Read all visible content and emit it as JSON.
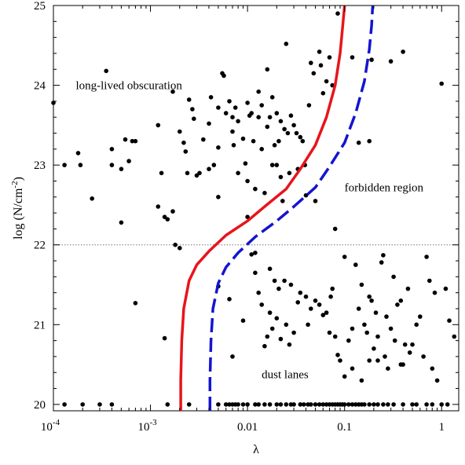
{
  "chart_data": {
    "type": "scatter",
    "title": "",
    "xlabel": "λ",
    "ylabel_base": "log (N/cm",
    "ylabel_exp": "-2",
    "ylabel_close": ")",
    "x_scale": "log",
    "xlim": [
      0.0001,
      1.5
    ],
    "ylim": [
      19.92,
      25.0
    ],
    "x_ticks": [
      {
        "value": 0.0001,
        "base": "10",
        "exp": "-4"
      },
      {
        "value": 0.001,
        "base": "10",
        "exp": "-3"
      },
      {
        "value": 0.01,
        "base": "0.01",
        "exp": ""
      },
      {
        "value": 0.1,
        "base": "0.1",
        "exp": ""
      },
      {
        "value": 1,
        "base": "1",
        "exp": ""
      }
    ],
    "y_ticks": [
      20,
      21,
      22,
      23,
      24,
      25
    ],
    "reference_line": {
      "y": 22,
      "style": "dotted",
      "color": "#777777"
    },
    "annotations": [
      {
        "text": "long-lived obscuration",
        "x": 0.00017,
        "y": 24.0
      },
      {
        "text": "forbidden region",
        "x": 0.1,
        "y": 22.72
      },
      {
        "text": "dust lanes",
        "x": 0.014,
        "y": 20.38
      }
    ],
    "series": [
      {
        "style": "points",
        "color": "#000000",
        "points": [
          [
            0.0001,
            23.78
          ],
          [
            0.00013,
            23.0
          ],
          [
            0.00018,
            23.15
          ],
          [
            0.00019,
            23.0
          ],
          [
            0.00025,
            22.58
          ],
          [
            0.00035,
            24.18
          ],
          [
            0.0004,
            23.2
          ],
          [
            0.0004,
            23.0
          ],
          [
            0.0005,
            22.95
          ],
          [
            0.0005,
            22.28
          ],
          [
            0.00055,
            23.32
          ],
          [
            0.0006,
            23.05
          ],
          [
            0.00065,
            23.3
          ],
          [
            0.0007,
            23.3
          ],
          [
            0.0007,
            21.27
          ],
          [
            0.0012,
            23.5
          ],
          [
            0.0012,
            22.48
          ],
          [
            0.0013,
            22.9
          ],
          [
            0.0014,
            22.35
          ],
          [
            0.0014,
            20.83
          ],
          [
            0.0015,
            22.32
          ],
          [
            0.0017,
            23.92
          ],
          [
            0.0017,
            22.42
          ],
          [
            0.0018,
            22.0
          ],
          [
            0.002,
            21.96
          ],
          [
            0.002,
            23.42
          ],
          [
            0.0022,
            23.28
          ],
          [
            0.0023,
            23.17
          ],
          [
            0.0024,
            22.9
          ],
          [
            0.0025,
            23.82
          ],
          [
            0.0027,
            23.7
          ],
          [
            0.0028,
            23.58
          ],
          [
            0.003,
            22.87
          ],
          [
            0.0032,
            22.9
          ],
          [
            0.0035,
            23.32
          ],
          [
            0.004,
            22.95
          ],
          [
            0.004,
            23.52
          ],
          [
            0.0042,
            23.85
          ],
          [
            0.0045,
            23.0
          ],
          [
            0.005,
            23.72
          ],
          [
            0.005,
            22.6
          ],
          [
            0.005,
            23.22
          ],
          [
            0.0055,
            24.15
          ],
          [
            0.0057,
            24.12
          ],
          [
            0.006,
            23.65
          ],
          [
            0.0065,
            23.8
          ],
          [
            0.007,
            23.6
          ],
          [
            0.007,
            23.42
          ],
          [
            0.0072,
            23.25
          ],
          [
            0.0075,
            23.72
          ],
          [
            0.008,
            23.55
          ],
          [
            0.008,
            22.9
          ],
          [
            0.009,
            23.33
          ],
          [
            0.0095,
            23.02
          ],
          [
            0.01,
            23.78
          ],
          [
            0.01,
            22.8
          ],
          [
            0.01,
            22.35
          ],
          [
            0.0105,
            23.62
          ],
          [
            0.011,
            23.65
          ],
          [
            0.011,
            21.88
          ],
          [
            0.0115,
            23.3
          ],
          [
            0.012,
            22.7
          ],
          [
            0.012,
            21.9
          ],
          [
            0.013,
            23.92
          ],
          [
            0.013,
            23.6
          ],
          [
            0.014,
            23.75
          ],
          [
            0.014,
            23.2
          ],
          [
            0.015,
            22.65
          ],
          [
            0.016,
            24.2
          ],
          [
            0.016,
            23.48
          ],
          [
            0.017,
            23.6
          ],
          [
            0.017,
            21.7
          ],
          [
            0.018,
            23.85
          ],
          [
            0.018,
            23.0
          ],
          [
            0.019,
            23.25
          ],
          [
            0.02,
            23.65
          ],
          [
            0.02,
            23.0
          ],
          [
            0.021,
            23.3
          ],
          [
            0.022,
            22.85
          ],
          [
            0.022,
            23.55
          ],
          [
            0.023,
            22.55
          ],
          [
            0.024,
            23.45
          ],
          [
            0.025,
            24.52
          ],
          [
            0.026,
            23.4
          ],
          [
            0.027,
            22.9
          ],
          [
            0.028,
            23.62
          ],
          [
            0.03,
            23.5
          ],
          [
            0.032,
            23.4
          ],
          [
            0.033,
            22.95
          ],
          [
            0.035,
            23.35
          ],
          [
            0.037,
            23.3
          ],
          [
            0.039,
            23.0
          ],
          [
            0.04,
            22.62
          ],
          [
            0.043,
            23.75
          ],
          [
            0.045,
            24.28
          ],
          [
            0.048,
            24.15
          ],
          [
            0.05,
            22.55
          ],
          [
            0.055,
            24.42
          ],
          [
            0.057,
            24.25
          ],
          [
            0.06,
            23.9
          ],
          [
            0.065,
            24.05
          ],
          [
            0.07,
            24.35
          ],
          [
            0.075,
            24.0
          ],
          [
            0.08,
            22.2
          ],
          [
            0.085,
            24.9
          ],
          [
            0.12,
            24.35
          ],
          [
            0.14,
            23.28
          ],
          [
            0.18,
            23.3
          ],
          [
            0.19,
            24.32
          ],
          [
            0.3,
            24.3
          ],
          [
            0.4,
            24.42
          ],
          [
            1.0,
            24.02
          ],
          [
            0.005,
            21.48
          ],
          [
            0.0065,
            21.32
          ],
          [
            0.007,
            20.6
          ],
          [
            0.009,
            21.05
          ],
          [
            0.012,
            21.65
          ],
          [
            0.013,
            21.4
          ],
          [
            0.014,
            21.25
          ],
          [
            0.015,
            20.73
          ],
          [
            0.016,
            20.85
          ],
          [
            0.017,
            21.15
          ],
          [
            0.018,
            20.95
          ],
          [
            0.019,
            21.55
          ],
          [
            0.02,
            21.08
          ],
          [
            0.021,
            21.45
          ],
          [
            0.022,
            20.82
          ],
          [
            0.024,
            21.55
          ],
          [
            0.025,
            21.0
          ],
          [
            0.027,
            20.75
          ],
          [
            0.028,
            21.5
          ],
          [
            0.03,
            20.9
          ],
          [
            0.033,
            21.28
          ],
          [
            0.035,
            21.4
          ],
          [
            0.04,
            21.35
          ],
          [
            0.042,
            21.0
          ],
          [
            0.045,
            21.2
          ],
          [
            0.05,
            21.3
          ],
          [
            0.055,
            21.25
          ],
          [
            0.06,
            21.12
          ],
          [
            0.065,
            21.15
          ],
          [
            0.07,
            20.9
          ],
          [
            0.072,
            21.35
          ],
          [
            0.075,
            21.45
          ],
          [
            0.08,
            20.85
          ],
          [
            0.085,
            20.62
          ],
          [
            0.09,
            20.55
          ],
          [
            0.1,
            21.85
          ],
          [
            0.1,
            20.35
          ],
          [
            0.11,
            20.8
          ],
          [
            0.12,
            20.95
          ],
          [
            0.13,
            21.75
          ],
          [
            0.14,
            21.2
          ],
          [
            0.15,
            21.5
          ],
          [
            0.16,
            21.0
          ],
          [
            0.17,
            20.9
          ],
          [
            0.18,
            21.35
          ],
          [
            0.19,
            21.3
          ],
          [
            0.2,
            20.7
          ],
          [
            0.21,
            21.15
          ],
          [
            0.22,
            20.55
          ],
          [
            0.24,
            21.78
          ],
          [
            0.25,
            21.87
          ],
          [
            0.27,
            21.1
          ],
          [
            0.3,
            20.95
          ],
          [
            0.32,
            21.6
          ],
          [
            0.35,
            21.25
          ],
          [
            0.38,
            21.3
          ],
          [
            0.4,
            20.5
          ],
          [
            0.45,
            21.45
          ],
          [
            0.5,
            20.75
          ],
          [
            0.55,
            21.0
          ],
          [
            0.6,
            21.1
          ],
          [
            0.65,
            20.6
          ],
          [
            0.7,
            21.85
          ],
          [
            0.75,
            21.55
          ],
          [
            0.8,
            20.45
          ],
          [
            0.85,
            21.4
          ],
          [
            0.9,
            20.3
          ],
          [
            1.1,
            21.45
          ],
          [
            1.2,
            21.05
          ],
          [
            1.35,
            20.85
          ],
          [
            0.12,
            20.45
          ],
          [
            0.15,
            20.3
          ],
          [
            0.18,
            20.55
          ],
          [
            0.22,
            20.85
          ],
          [
            0.26,
            20.6
          ],
          [
            0.28,
            20.45
          ],
          [
            0.33,
            20.8
          ],
          [
            0.38,
            20.5
          ],
          [
            0.42,
            20.75
          ],
          [
            0.47,
            20.65
          ],
          [
            0.00013,
            20.0
          ],
          [
            0.0002,
            20.0
          ],
          [
            0.0003,
            20.0
          ],
          [
            0.0004,
            20.0
          ],
          [
            0.0015,
            20.0
          ],
          [
            0.0025,
            20.0
          ],
          [
            0.005,
            20.0
          ],
          [
            0.006,
            20.0
          ],
          [
            0.0065,
            20.0
          ],
          [
            0.007,
            20.0
          ],
          [
            0.0075,
            20.0
          ],
          [
            0.008,
            20.0
          ],
          [
            0.009,
            20.0
          ],
          [
            0.01,
            20.0
          ],
          [
            0.012,
            20.0
          ],
          [
            0.013,
            20.0
          ],
          [
            0.015,
            20.0
          ],
          [
            0.017,
            20.0
          ],
          [
            0.02,
            20.0
          ],
          [
            0.022,
            20.0
          ],
          [
            0.025,
            20.0
          ],
          [
            0.028,
            20.0
          ],
          [
            0.03,
            20.0
          ],
          [
            0.035,
            20.0
          ],
          [
            0.038,
            20.0
          ],
          [
            0.042,
            20.0
          ],
          [
            0.045,
            20.0
          ],
          [
            0.05,
            20.0
          ],
          [
            0.055,
            20.0
          ],
          [
            0.06,
            20.0
          ],
          [
            0.065,
            20.0
          ],
          [
            0.07,
            20.0
          ],
          [
            0.075,
            20.0
          ],
          [
            0.08,
            20.0
          ],
          [
            0.085,
            20.0
          ],
          [
            0.09,
            20.0
          ],
          [
            0.095,
            20.0
          ],
          [
            0.1,
            20.0
          ],
          [
            0.11,
            20.0
          ],
          [
            0.12,
            20.0
          ],
          [
            0.13,
            20.0
          ],
          [
            0.14,
            20.0
          ],
          [
            0.15,
            20.0
          ],
          [
            0.16,
            20.0
          ],
          [
            0.18,
            20.0
          ],
          [
            0.2,
            20.0
          ],
          [
            0.22,
            20.0
          ],
          [
            0.25,
            20.0
          ],
          [
            0.28,
            20.0
          ],
          [
            0.32,
            20.0
          ],
          [
            0.4,
            20.0
          ],
          [
            0.5,
            20.0
          ],
          [
            0.55,
            20.0
          ],
          [
            0.7,
            20.0
          ],
          [
            0.8,
            20.0
          ],
          [
            1.0,
            20.0
          ],
          [
            1.15,
            20.0
          ]
        ]
      },
      {
        "style": "line",
        "color": "#e8141b",
        "dash": "solid",
        "points": [
          [
            0.00205,
            19.92
          ],
          [
            0.00205,
            20.3
          ],
          [
            0.0021,
            20.8
          ],
          [
            0.0022,
            21.2
          ],
          [
            0.0025,
            21.55
          ],
          [
            0.003,
            21.75
          ],
          [
            0.004,
            21.92
          ],
          [
            0.006,
            22.12
          ],
          [
            0.01,
            22.3
          ],
          [
            0.015,
            22.48
          ],
          [
            0.025,
            22.7
          ],
          [
            0.035,
            22.95
          ],
          [
            0.05,
            23.25
          ],
          [
            0.065,
            23.6
          ],
          [
            0.08,
            24.0
          ],
          [
            0.09,
            24.4
          ],
          [
            0.095,
            24.7
          ],
          [
            0.1,
            25.0
          ]
        ]
      },
      {
        "style": "line",
        "color": "#1414d2",
        "dash": "dashed",
        "points": [
          [
            0.0041,
            19.92
          ],
          [
            0.0041,
            20.3
          ],
          [
            0.0042,
            20.8
          ],
          [
            0.0044,
            21.2
          ],
          [
            0.005,
            21.52
          ],
          [
            0.006,
            21.72
          ],
          [
            0.008,
            21.9
          ],
          [
            0.012,
            22.1
          ],
          [
            0.02,
            22.3
          ],
          [
            0.03,
            22.48
          ],
          [
            0.05,
            22.72
          ],
          [
            0.07,
            22.98
          ],
          [
            0.1,
            23.28
          ],
          [
            0.13,
            23.65
          ],
          [
            0.16,
            24.05
          ],
          [
            0.18,
            24.45
          ],
          [
            0.19,
            24.75
          ],
          [
            0.195,
            25.0
          ]
        ]
      }
    ]
  }
}
